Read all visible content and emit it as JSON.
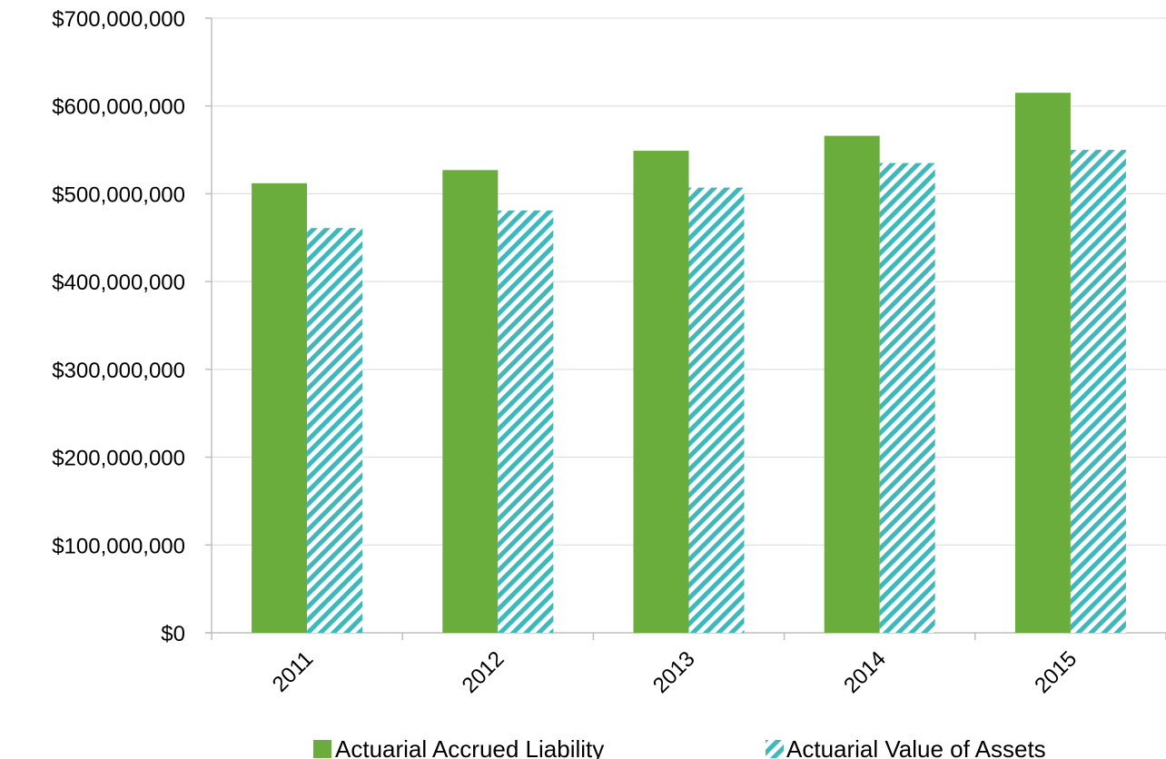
{
  "chart_data": {
    "type": "bar",
    "categories": [
      "2011",
      "2012",
      "2013",
      "2014",
      "2015"
    ],
    "series": [
      {
        "name": "Actuarial Accrued Liability",
        "values": [
          512000000,
          527000000,
          549000000,
          566000000,
          615000000
        ],
        "color": "#6aad3d",
        "pattern": "solid"
      },
      {
        "name": "Actuarial Value of Assets",
        "values": [
          461000000,
          481000000,
          507000000,
          535000000,
          550000000
        ],
        "color": "#3fb8bc",
        "pattern": "diagonal-stripes"
      }
    ],
    "y_ticks": [
      0,
      100000000,
      200000000,
      300000000,
      400000000,
      500000000,
      600000000,
      700000000
    ],
    "y_tick_labels": [
      "$0",
      "$100,000,000",
      "$200,000,000",
      "$300,000,000",
      "$400,000,000",
      "$500,000,000",
      "$600,000,000",
      "$700,000,000"
    ],
    "ylim": [
      0,
      700000000
    ],
    "grid": true,
    "legend_position": "bottom",
    "title": "",
    "xlabel": "",
    "ylabel": ""
  }
}
